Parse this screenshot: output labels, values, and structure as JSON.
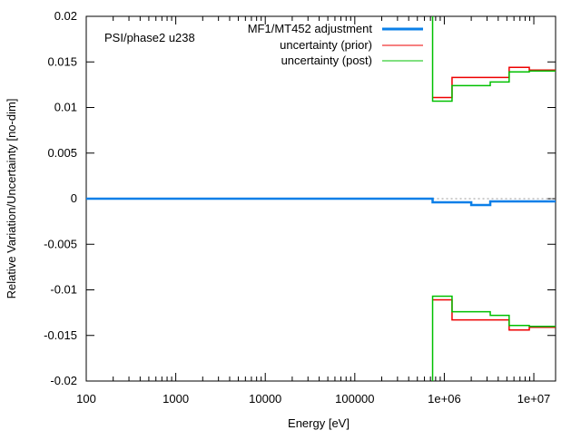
{
  "chart_data": {
    "type": "line",
    "title": "",
    "annotation": "PSI/phase2 u238",
    "xlabel": "Energy [eV]",
    "ylabel": "Relative Variation/Uncertainty [no-dim]",
    "xscale": "log",
    "xlim": [
      100,
      17500000
    ],
    "ylim": [
      -0.02,
      0.02
    ],
    "grid": false,
    "legend_position": "top-right",
    "x_ticks": [
      {
        "value": 100,
        "label": "100"
      },
      {
        "value": 1000,
        "label": "1000"
      },
      {
        "value": 10000,
        "label": "10000"
      },
      {
        "value": 100000,
        "label": "100000"
      },
      {
        "value": 1000000,
        "label": "1e+06"
      },
      {
        "value": 10000000,
        "label": "1e+07"
      }
    ],
    "y_ticks": [
      {
        "value": 0.02,
        "label": "0.02"
      },
      {
        "value": 0.015,
        "label": "0.015"
      },
      {
        "value": 0.01,
        "label": "0.01"
      },
      {
        "value": 0.005,
        "label": "0.005"
      },
      {
        "value": 0,
        "label": "0"
      },
      {
        "value": -0.005,
        "label": "-0.005"
      },
      {
        "value": -0.01,
        "label": "-0.01"
      },
      {
        "value": -0.015,
        "label": "-0.015"
      },
      {
        "value": -0.02,
        "label": "-0.02"
      }
    ],
    "series": [
      {
        "name": "MF1/MT452 adjustment",
        "color": "#0a7fe8",
        "style": "step",
        "edges": [
          100,
          740000,
          2000000,
          3260000,
          17500000
        ],
        "values": [
          0,
          -0.0004,
          -0.0007,
          -0.0003
        ]
      },
      {
        "name": "uncertainty (prior)",
        "color": "#ee0000",
        "style": "step-band",
        "edges": [
          740000,
          1220000,
          3260000,
          5300000,
          8900000,
          17500000
        ],
        "values": [
          0.0111,
          0.0133,
          0.0133,
          0.0144,
          0.0141
        ]
      },
      {
        "name": "uncertainty (post)",
        "color": "#00c000",
        "style": "step-band",
        "edges": [
          740000,
          1220000,
          3260000,
          5300000,
          8900000,
          17500000
        ],
        "values": [
          0.0107,
          0.0124,
          0.0128,
          0.0139,
          0.014
        ],
        "below_range_value": 0.05
      }
    ]
  }
}
